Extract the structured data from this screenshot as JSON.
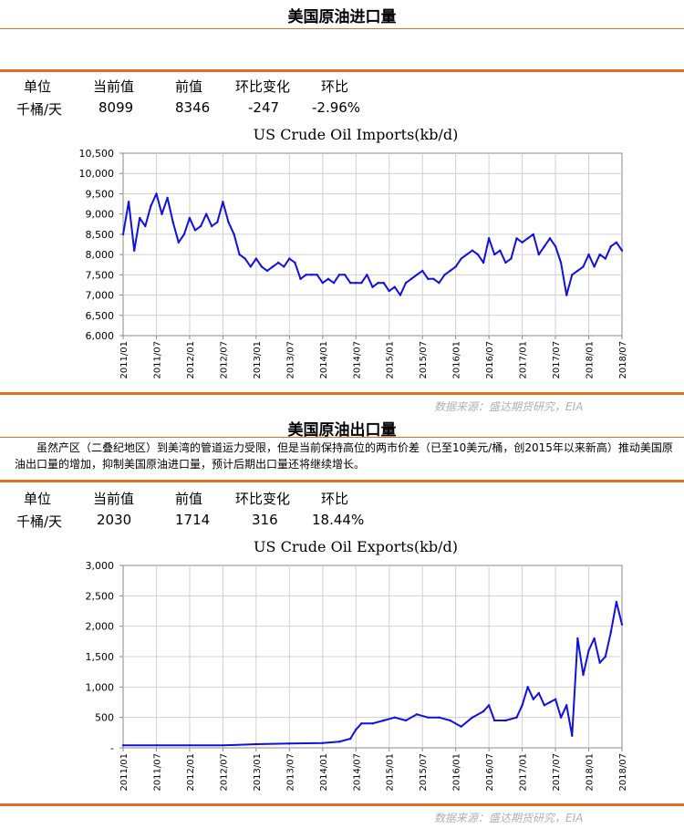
{
  "imports": {
    "title": "美国原油进口量",
    "headers": [
      "单位",
      "当前值",
      "前值",
      "环比变化",
      "环比"
    ],
    "values": [
      "千桶/天",
      "8099",
      "8346",
      "-247",
      "-2.96%"
    ],
    "source": "数据来源：盛达期货研究，EIA"
  },
  "exports": {
    "title": "美国原油出口量",
    "paragraph": "虽然产区（二叠纪地区）到美湾的管道运力受限，但是当前保持高位的两市价差（已至10美元/桶，创2015年以来新高）推动美国原油出口量的增加，抑制美国原油进口量，预计后期出口量还将继续增长。",
    "headers": [
      "单位",
      "当前值",
      "前值",
      "环比变化",
      "环比"
    ],
    "values": [
      "千桶/天",
      "2030",
      "1714",
      "316",
      "18.44%"
    ],
    "source": "数据来源：盛达期货研究，EIA"
  },
  "chart_data": [
    {
      "type": "line",
      "title": "US Crude Oil Imports(kb/d)",
      "color": "#1010e0",
      "ylim": [
        6000,
        10500
      ],
      "yticks": [
        6000,
        6500,
        7000,
        7500,
        8000,
        8500,
        9000,
        9500,
        10000,
        10500
      ],
      "ytick_labels": [
        "6,000",
        "6,500",
        "7,000",
        "7,500",
        "8,000",
        "8,500",
        "9,000",
        "9,500",
        "10,000",
        "10,500"
      ],
      "xlim": [
        "2011-01",
        "2018-07"
      ],
      "xtick_labels": [
        "2011/01",
        "2011/07",
        "2012/01",
        "2012/07",
        "2013/01",
        "2013/07",
        "2014/01",
        "2014/07",
        "2015/01",
        "2015/07",
        "2016/01",
        "2016/07",
        "2017/01",
        "2017/07",
        "2018/01",
        "2018/07"
      ],
      "grid": true,
      "series": [
        {
          "x": [
            "2011-01",
            "2011-02",
            "2011-03",
            "2011-04",
            "2011-05",
            "2011-06",
            "2011-07",
            "2011-08",
            "2011-09",
            "2011-10",
            "2011-11",
            "2011-12",
            "2012-01",
            "2012-02",
            "2012-03",
            "2012-04",
            "2012-05",
            "2012-06",
            "2012-07",
            "2012-08",
            "2012-09",
            "2012-10",
            "2012-11",
            "2012-12",
            "2013-01",
            "2013-02",
            "2013-03",
            "2013-04",
            "2013-05",
            "2013-06",
            "2013-07",
            "2013-08",
            "2013-09",
            "2013-10",
            "2013-11",
            "2013-12",
            "2014-01",
            "2014-02",
            "2014-03",
            "2014-04",
            "2014-05",
            "2014-06",
            "2014-07",
            "2014-08",
            "2014-09",
            "2014-10",
            "2014-11",
            "2014-12",
            "2015-01",
            "2015-02",
            "2015-03",
            "2015-04",
            "2015-05",
            "2015-06",
            "2015-07",
            "2015-08",
            "2015-09",
            "2015-10",
            "2015-11",
            "2015-12",
            "2016-01",
            "2016-02",
            "2016-03",
            "2016-04",
            "2016-05",
            "2016-06",
            "2016-07",
            "2016-08",
            "2016-09",
            "2016-10",
            "2016-11",
            "2016-12",
            "2017-01",
            "2017-02",
            "2017-03",
            "2017-04",
            "2017-05",
            "2017-06",
            "2017-07",
            "2017-08",
            "2017-09",
            "2017-10",
            "2017-11",
            "2017-12",
            "2018-01",
            "2018-02",
            "2018-03",
            "2018-04",
            "2018-05",
            "2018-06",
            "2018-07"
          ],
          "values": [
            8500,
            9300,
            8100,
            8900,
            8700,
            9200,
            9500,
            9000,
            9400,
            8800,
            8300,
            8500,
            8900,
            8600,
            8700,
            9000,
            8700,
            8800,
            9300,
            8800,
            8500,
            8000,
            7900,
            7700,
            7900,
            7700,
            7600,
            7700,
            7800,
            7700,
            7900,
            7800,
            7400,
            7500,
            7500,
            7500,
            7300,
            7400,
            7300,
            7500,
            7500,
            7300,
            7300,
            7300,
            7500,
            7200,
            7300,
            7300,
            7100,
            7200,
            7000,
            7300,
            7400,
            7500,
            7600,
            7400,
            7400,
            7300,
            7500,
            7600,
            7700,
            7900,
            8000,
            8100,
            8000,
            7800,
            8400,
            8000,
            8100,
            7800,
            7900,
            8400,
            8300,
            8400,
            8500,
            8000,
            8200,
            8400,
            8200,
            7800,
            7000,
            7500,
            7600,
            7700,
            8000,
            7700,
            8000,
            7900,
            8200,
            8300,
            8100
          ]
        }
      ]
    },
    {
      "type": "line",
      "title": "US Crude Oil Exports(kb/d)",
      "color": "#1010e0",
      "ylim": [
        0,
        3000
      ],
      "yticks": [
        0,
        500,
        1000,
        1500,
        2000,
        2500,
        3000
      ],
      "ytick_labels": [
        "-",
        "500",
        "1,000",
        "1,500",
        "2,000",
        "2,500",
        "3,000"
      ],
      "xlim": [
        "2011-01",
        "2018-07"
      ],
      "xtick_labels": [
        "2011/01",
        "2011/07",
        "2012/01",
        "2012/07",
        "2013/01",
        "2013/07",
        "2014/01",
        "2014/07",
        "2015/01",
        "2015/07",
        "2016/01",
        "2016/07",
        "2017/01",
        "2017/07",
        "2018/01",
        "2018/07"
      ],
      "grid": true,
      "series": [
        {
          "x": [
            "2011-01",
            "2011-07",
            "2012-01",
            "2012-07",
            "2013-01",
            "2013-07",
            "2014-01",
            "2014-04",
            "2014-06",
            "2014-07",
            "2014-08",
            "2014-10",
            "2014-12",
            "2015-02",
            "2015-04",
            "2015-06",
            "2015-08",
            "2015-10",
            "2015-12",
            "2016-02",
            "2016-04",
            "2016-06",
            "2016-07",
            "2016-08",
            "2016-10",
            "2016-12",
            "2017-01",
            "2017-02",
            "2017-03",
            "2017-04",
            "2017-05",
            "2017-06",
            "2017-07",
            "2017-08",
            "2017-09",
            "2017-10",
            "2017-11",
            "2017-12",
            "2018-01",
            "2018-02",
            "2018-03",
            "2018-04",
            "2018-05",
            "2018-06",
            "2018-07"
          ],
          "values": [
            40,
            40,
            40,
            40,
            60,
            70,
            80,
            100,
            150,
            300,
            400,
            400,
            450,
            500,
            450,
            550,
            500,
            500,
            450,
            350,
            500,
            600,
            700,
            450,
            450,
            500,
            700,
            1000,
            800,
            900,
            700,
            750,
            800,
            500,
            700,
            200,
            1800,
            1200,
            1600,
            1800,
            1400,
            1500,
            1900,
            2400,
            2030
          ]
        }
      ]
    }
  ]
}
